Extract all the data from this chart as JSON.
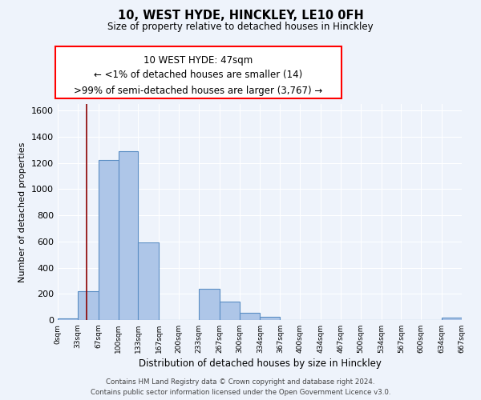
{
  "title": "10, WEST HYDE, HINCKLEY, LE10 0FH",
  "subtitle": "Size of property relative to detached houses in Hinckley",
  "xlabel": "Distribution of detached houses by size in Hinckley",
  "ylabel": "Number of detached properties",
  "bin_edges": [
    0,
    33,
    67,
    100,
    133,
    167,
    200,
    233,
    267,
    300,
    334,
    367,
    400,
    434,
    467,
    500,
    534,
    567,
    600,
    634,
    667
  ],
  "bar_heights": [
    14,
    222,
    1220,
    1290,
    590,
    0,
    0,
    240,
    140,
    55,
    25,
    0,
    0,
    0,
    0,
    0,
    0,
    0,
    0,
    20
  ],
  "bar_color": "#aec6e8",
  "bar_edge_color": "#5b8ec4",
  "background_color": "#eef3fb",
  "grid_color": "#ffffff",
  "red_line_x": 47,
  "ylim": [
    0,
    1650
  ],
  "yticks": [
    0,
    200,
    400,
    600,
    800,
    1000,
    1200,
    1400,
    1600
  ],
  "xtick_labels": [
    "0sqm",
    "33sqm",
    "67sqm",
    "100sqm",
    "133sqm",
    "167sqm",
    "200sqm",
    "233sqm",
    "267sqm",
    "300sqm",
    "334sqm",
    "367sqm",
    "400sqm",
    "434sqm",
    "467sqm",
    "500sqm",
    "534sqm",
    "567sqm",
    "600sqm",
    "634sqm",
    "667sqm"
  ],
  "ann_line1": "10 WEST HYDE: 47sqm",
  "ann_line2": "← <1% of detached houses are smaller (14)",
  "ann_line3": ">99% of semi-detached houses are larger (3,767) →",
  "footer_line1": "Contains HM Land Registry data © Crown copyright and database right 2024.",
  "footer_line2": "Contains public sector information licensed under the Open Government Licence v3.0."
}
